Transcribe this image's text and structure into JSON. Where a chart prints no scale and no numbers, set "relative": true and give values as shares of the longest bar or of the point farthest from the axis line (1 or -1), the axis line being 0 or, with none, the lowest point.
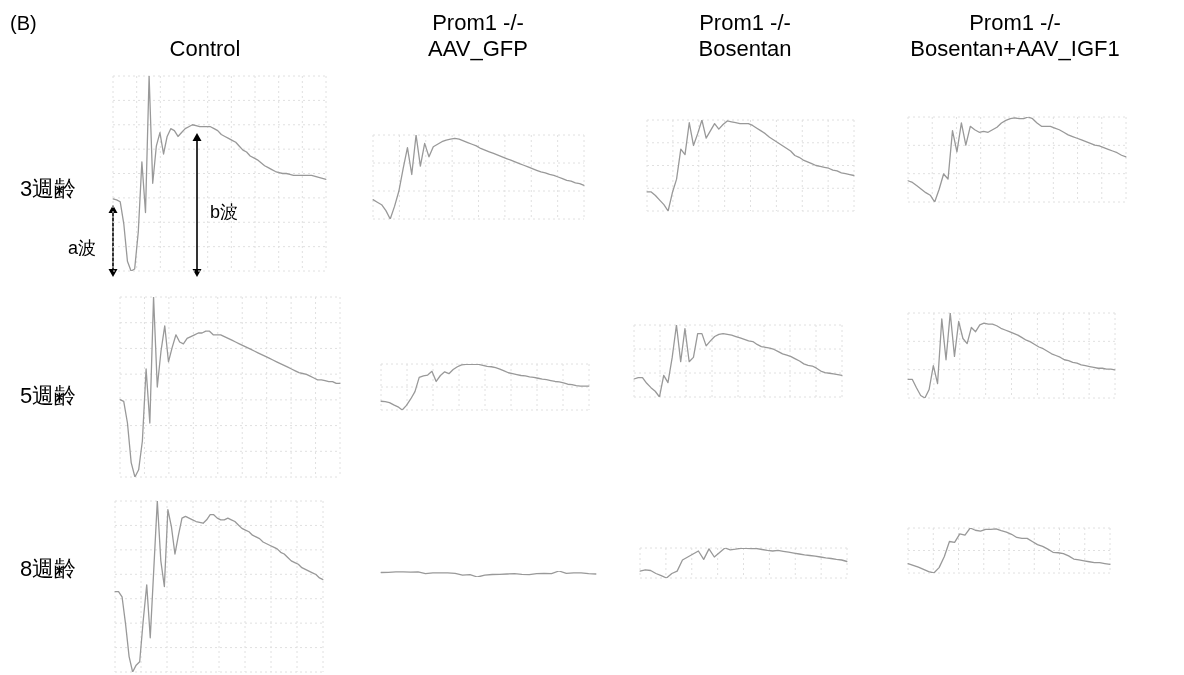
{
  "chart_data": [
    {
      "type": "line",
      "title": "Control",
      "ylabel": "3週齢",
      "annotations": [
        "(B)",
        "a波",
        "b波"
      ],
      "relative": true,
      "grid": true,
      "tick_labels": false,
      "marker": "none",
      "color": "#999999",
      "categories": [
        null,
        null,
        null,
        null,
        null,
        null,
        null,
        null,
        null,
        null,
        null,
        null,
        null,
        null,
        null,
        null,
        null,
        null,
        null,
        null,
        null,
        null,
        null,
        null,
        null,
        null,
        null,
        null,
        null,
        null,
        null,
        null,
        null,
        null,
        null,
        null,
        null,
        null,
        null,
        null,
        null,
        null,
        null,
        null,
        null,
        null,
        null,
        null,
        null,
        null,
        null,
        null,
        null,
        null,
        null,
        null,
        null,
        null,
        null,
        null
      ],
      "values": [
        0.37,
        0.365,
        0.355,
        0.24,
        0.05,
        0,
        0.01,
        0.2,
        0.56,
        0.3,
        1.0,
        0.45,
        0.64,
        0.71,
        0.6,
        0.69,
        0.73,
        0.72,
        0.69,
        0.71,
        0.73,
        0.74,
        0.75,
        0.745,
        0.74,
        0.74,
        0.74,
        0.74,
        0.73,
        0.72,
        0.7,
        0.69,
        0.68,
        0.67,
        0.66,
        0.64,
        0.62,
        0.61,
        0.59,
        0.58,
        0.57,
        0.555,
        0.54,
        0.53,
        0.52,
        0.51,
        0.505,
        0.5,
        0.5,
        0.495,
        0.49,
        0.49,
        0.49,
        0.49,
        0.49,
        0.49,
        0.485,
        0.48,
        0.475,
        0.47
      ]
    },
    {
      "type": "line",
      "title": "Prom1 -/- AAV_GFP",
      "relative": true,
      "grid": true,
      "tick_labels": false,
      "marker": "none",
      "color": "#999999",
      "categories": [
        null,
        null,
        null,
        null,
        null,
        null,
        null,
        null,
        null,
        null,
        null,
        null,
        null,
        null,
        null,
        null,
        null,
        null,
        null,
        null,
        null,
        null,
        null,
        null,
        null,
        null,
        null,
        null,
        null,
        null,
        null,
        null,
        null,
        null,
        null,
        null,
        null,
        null,
        null,
        null,
        null,
        null,
        null,
        null,
        null,
        null,
        null,
        null,
        null,
        null
      ],
      "values": [
        0.23,
        0.2,
        0.17,
        0.1,
        0,
        0.15,
        0.33,
        0.6,
        0.85,
        0.53,
        1.0,
        0.63,
        0.9,
        0.74,
        0.86,
        0.89,
        0.92,
        0.94,
        0.95,
        0.96,
        0.95,
        0.93,
        0.91,
        0.89,
        0.87,
        0.84,
        0.82,
        0.8,
        0.78,
        0.76,
        0.74,
        0.72,
        0.7,
        0.68,
        0.66,
        0.64,
        0.62,
        0.6,
        0.58,
        0.56,
        0.55,
        0.53,
        0.52,
        0.5,
        0.48,
        0.46,
        0.45,
        0.43,
        0.42,
        0.4
      ]
    },
    {
      "type": "line",
      "title": "Prom1 -/- Bosentan",
      "relative": true,
      "grid": true,
      "tick_labels": false,
      "marker": "none",
      "color": "#999999",
      "categories": [
        null,
        null,
        null,
        null,
        null,
        null,
        null,
        null,
        null,
        null,
        null,
        null,
        null,
        null,
        null,
        null,
        null,
        null,
        null,
        null,
        null,
        null,
        null,
        null,
        null,
        null,
        null,
        null,
        null,
        null,
        null,
        null,
        null,
        null,
        null,
        null,
        null,
        null,
        null,
        null,
        null,
        null,
        null,
        null,
        null,
        null,
        null,
        null,
        null,
        null
      ],
      "values": [
        0.21,
        0.21,
        0.17,
        0.12,
        0.07,
        0,
        0.2,
        0.35,
        0.68,
        0.62,
        0.97,
        0.72,
        0.85,
        1.0,
        0.8,
        0.88,
        0.96,
        0.9,
        0.95,
        0.99,
        0.98,
        0.97,
        0.96,
        0.96,
        0.96,
        0.94,
        0.91,
        0.88,
        0.85,
        0.81,
        0.78,
        0.75,
        0.72,
        0.69,
        0.66,
        0.61,
        0.59,
        0.56,
        0.54,
        0.52,
        0.5,
        0.49,
        0.48,
        0.47,
        0.45,
        0.44,
        0.42,
        0.41,
        0.4,
        0.39
      ]
    },
    {
      "type": "line",
      "title": "Prom1 -/- Bosentan+AAV_IGF1",
      "relative": true,
      "grid": true,
      "tick_labels": false,
      "marker": "none",
      "color": "#999999",
      "categories": [
        null,
        null,
        null,
        null,
        null,
        null,
        null,
        null,
        null,
        null,
        null,
        null,
        null,
        null,
        null,
        null,
        null,
        null,
        null,
        null,
        null,
        null,
        null,
        null,
        null,
        null,
        null,
        null,
        null,
        null,
        null,
        null,
        null,
        null,
        null,
        null,
        null,
        null,
        null,
        null,
        null,
        null,
        null,
        null,
        null,
        null,
        null,
        null,
        null,
        null
      ],
      "values": [
        0.25,
        0.23,
        0.19,
        0.15,
        0.11,
        0.08,
        0,
        0.15,
        0.33,
        0.27,
        0.84,
        0.59,
        0.93,
        0.67,
        0.89,
        0.85,
        0.82,
        0.83,
        0.82,
        0.85,
        0.88,
        0.93,
        0.96,
        0.98,
        0.99,
        0.98,
        0.98,
        1.0,
        0.98,
        0.93,
        0.89,
        0.89,
        0.89,
        0.87,
        0.85,
        0.82,
        0.79,
        0.77,
        0.75,
        0.73,
        0.71,
        0.69,
        0.67,
        0.66,
        0.64,
        0.62,
        0.6,
        0.58,
        0.55,
        0.53
      ]
    },
    {
      "type": "line",
      "ylabel": "5週齢",
      "relative": true,
      "grid": true,
      "tick_labels": false,
      "marker": "none",
      "color": "#999999",
      "categories": [
        null,
        null,
        null,
        null,
        null,
        null,
        null,
        null,
        null,
        null,
        null,
        null,
        null,
        null,
        null,
        null,
        null,
        null,
        null,
        null,
        null,
        null,
        null,
        null,
        null,
        null,
        null,
        null,
        null,
        null,
        null,
        null,
        null,
        null,
        null,
        null,
        null,
        null,
        null,
        null,
        null,
        null,
        null,
        null,
        null,
        null,
        null,
        null,
        null,
        null,
        null,
        null,
        null,
        null,
        null,
        null,
        null,
        null,
        null,
        null
      ],
      "values": [
        0.43,
        0.42,
        0.3,
        0.08,
        0,
        0.04,
        0.2,
        0.6,
        0.3,
        1.0,
        0.5,
        0.7,
        0.84,
        0.64,
        0.72,
        0.79,
        0.75,
        0.74,
        0.77,
        0.78,
        0.79,
        0.8,
        0.8,
        0.81,
        0.81,
        0.79,
        0.79,
        0.79,
        0.78,
        0.77,
        0.76,
        0.75,
        0.74,
        0.73,
        0.72,
        0.71,
        0.7,
        0.69,
        0.68,
        0.67,
        0.66,
        0.65,
        0.64,
        0.63,
        0.62,
        0.61,
        0.6,
        0.59,
        0.58,
        0.575,
        0.57,
        0.56,
        0.55,
        0.54,
        0.54,
        0.535,
        0.53,
        0.53,
        0.52,
        0.52
      ]
    },
    {
      "type": "line",
      "relative": true,
      "grid": true,
      "tick_labels": false,
      "marker": "none",
      "color": "#999999",
      "categories": [
        null,
        null,
        null,
        null,
        null,
        null,
        null,
        null,
        null,
        null,
        null,
        null,
        null,
        null,
        null,
        null,
        null,
        null,
        null,
        null,
        null,
        null,
        null,
        null,
        null,
        null,
        null,
        null,
        null,
        null,
        null,
        null,
        null,
        null,
        null,
        null,
        null,
        null,
        null,
        null,
        null,
        null,
        null,
        null,
        null,
        null,
        null,
        null,
        null,
        null
      ],
      "values": [
        0.19,
        0.18,
        0.16,
        0.11,
        0.07,
        0,
        0.1,
        0.24,
        0.4,
        0.71,
        0.74,
        0.76,
        0.84,
        0.62,
        0.75,
        0.83,
        0.79,
        0.88,
        0.94,
        0.98,
        0.99,
        0.99,
        1.0,
        0.99,
        0.97,
        0.95,
        0.94,
        0.92,
        0.89,
        0.85,
        0.81,
        0.79,
        0.77,
        0.75,
        0.74,
        0.72,
        0.71,
        0.69,
        0.67,
        0.66,
        0.64,
        0.62,
        0.61,
        0.59,
        0.56,
        0.55,
        0.53,
        0.52,
        0.52,
        0.52
      ]
    },
    {
      "type": "line",
      "relative": true,
      "grid": true,
      "tick_labels": false,
      "marker": "none",
      "color": "#999999",
      "categories": [
        null,
        null,
        null,
        null,
        null,
        null,
        null,
        null,
        null,
        null,
        null,
        null,
        null,
        null,
        null,
        null,
        null,
        null,
        null,
        null,
        null,
        null,
        null,
        null,
        null,
        null,
        null,
        null,
        null,
        null,
        null,
        null,
        null,
        null,
        null,
        null,
        null,
        null,
        null,
        null,
        null,
        null,
        null,
        null,
        null,
        null,
        null,
        null,
        null,
        null
      ],
      "values": [
        0.25,
        0.27,
        0.27,
        0.19,
        0.13,
        0.08,
        0,
        0.3,
        0.2,
        0.55,
        1.0,
        0.49,
        0.95,
        0.49,
        0.55,
        0.88,
        0.88,
        0.71,
        0.78,
        0.84,
        0.87,
        0.88,
        0.87,
        0.86,
        0.84,
        0.82,
        0.8,
        0.78,
        0.77,
        0.73,
        0.7,
        0.69,
        0.68,
        0.66,
        0.63,
        0.6,
        0.58,
        0.56,
        0.53,
        0.5,
        0.46,
        0.44,
        0.43,
        0.4,
        0.36,
        0.34,
        0.33,
        0.32,
        0.31,
        0.3
      ]
    },
    {
      "type": "line",
      "relative": true,
      "grid": true,
      "tick_labels": false,
      "marker": "none",
      "color": "#999999",
      "categories": [
        null,
        null,
        null,
        null,
        null,
        null,
        null,
        null,
        null,
        null,
        null,
        null,
        null,
        null,
        null,
        null,
        null,
        null,
        null,
        null,
        null,
        null,
        null,
        null,
        null,
        null,
        null,
        null,
        null,
        null,
        null,
        null,
        null,
        null,
        null,
        null,
        null,
        null,
        null,
        null,
        null,
        null,
        null,
        null,
        null,
        null,
        null,
        null,
        null,
        null
      ],
      "values": [
        0.22,
        0.22,
        0.12,
        0.03,
        0,
        0.1,
        0.38,
        0.17,
        0.93,
        0.45,
        1.0,
        0.49,
        0.9,
        0.7,
        0.64,
        0.83,
        0.78,
        0.86,
        0.88,
        0.87,
        0.87,
        0.85,
        0.82,
        0.8,
        0.78,
        0.76,
        0.74,
        0.71,
        0.68,
        0.66,
        0.63,
        0.6,
        0.58,
        0.55,
        0.52,
        0.5,
        0.48,
        0.45,
        0.44,
        0.42,
        0.41,
        0.39,
        0.38,
        0.37,
        0.36,
        0.35,
        0.35,
        0.34,
        0.34,
        0.33
      ]
    },
    {
      "type": "line",
      "ylabel": "8週齢",
      "relative": true,
      "grid": true,
      "tick_labels": false,
      "marker": "none",
      "color": "#999999",
      "categories": [
        null,
        null,
        null,
        null,
        null,
        null,
        null,
        null,
        null,
        null,
        null,
        null,
        null,
        null,
        null,
        null,
        null,
        null,
        null,
        null,
        null,
        null,
        null,
        null,
        null,
        null,
        null,
        null,
        null,
        null,
        null,
        null,
        null,
        null,
        null,
        null,
        null,
        null,
        null,
        null,
        null,
        null,
        null,
        null,
        null,
        null,
        null,
        null,
        null,
        null,
        null,
        null,
        null,
        null,
        null,
        null,
        null,
        null,
        null,
        null
      ],
      "values": [
        0.47,
        0.47,
        0.44,
        0.28,
        0.09,
        0,
        0.04,
        0.06,
        0.3,
        0.51,
        0.2,
        0.6,
        1.0,
        0.65,
        0.5,
        0.95,
        0.85,
        0.69,
        0.8,
        0.9,
        0.91,
        0.9,
        0.89,
        0.88,
        0.875,
        0.87,
        0.89,
        0.92,
        0.92,
        0.9,
        0.89,
        0.89,
        0.9,
        0.89,
        0.88,
        0.86,
        0.84,
        0.83,
        0.82,
        0.8,
        0.79,
        0.78,
        0.76,
        0.75,
        0.74,
        0.73,
        0.72,
        0.7,
        0.69,
        0.67,
        0.65,
        0.64,
        0.63,
        0.61,
        0.6,
        0.59,
        0.58,
        0.57,
        0.55,
        0.54
      ]
    },
    {
      "type": "line",
      "relative": true,
      "tick_labels": false,
      "marker": "none",
      "color": "#999999",
      "categories": [
        null,
        null,
        null,
        null,
        null,
        null,
        null,
        null,
        null,
        null,
        null,
        null,
        null,
        null,
        null,
        null,
        null,
        null,
        null,
        null,
        null,
        null,
        null,
        null,
        null,
        null,
        null,
        null,
        null,
        null
      ],
      "values": [
        0.75,
        0.78,
        0.85,
        0.85,
        0.82,
        0.85,
        0.55,
        0.68,
        0.68,
        0.7,
        0.62,
        0.32,
        0.4,
        0,
        0.3,
        0.42,
        0.45,
        0.5,
        0.55,
        0.45,
        0.38,
        0.55,
        0.62,
        0.55,
        1.0,
        0.6,
        0.68,
        0.7,
        0.55,
        0.5
      ]
    },
    {
      "type": "line",
      "relative": true,
      "grid": true,
      "tick_labels": false,
      "marker": "none",
      "color": "#999999",
      "categories": [
        null,
        null,
        null,
        null,
        null,
        null,
        null,
        null,
        null,
        null,
        null,
        null,
        null,
        null,
        null,
        null,
        null,
        null,
        null,
        null,
        null,
        null,
        null,
        null,
        null,
        null,
        null,
        null,
        null,
        null,
        null,
        null,
        null,
        null,
        null,
        null,
        null,
        null,
        null,
        null
      ],
      "values": [
        0.23,
        0.27,
        0.25,
        0.15,
        0.08,
        0,
        0.15,
        0.23,
        0.6,
        0.7,
        0.8,
        0.9,
        0.62,
        0.97,
        0.7,
        0.85,
        1.0,
        0.94,
        0.96,
        0.99,
        0.99,
        0.98,
        0.98,
        0.95,
        0.92,
        0.9,
        0.92,
        0.89,
        0.86,
        0.83,
        0.8,
        0.77,
        0.75,
        0.73,
        0.7,
        0.67,
        0.65,
        0.62,
        0.6,
        0.55
      ]
    },
    {
      "type": "line",
      "relative": true,
      "grid": true,
      "tick_labels": false,
      "marker": "none",
      "color": "#999999",
      "categories": [
        null,
        null,
        null,
        null,
        null,
        null,
        null,
        null,
        null,
        null,
        null,
        null,
        null,
        null,
        null,
        null,
        null,
        null,
        null,
        null,
        null,
        null,
        null,
        null,
        null,
        null,
        null,
        null,
        null,
        null,
        null,
        null,
        null,
        null,
        null,
        null,
        null,
        null,
        null,
        null
      ],
      "values": [
        0.21,
        0.17,
        0.13,
        0.08,
        0.03,
        0,
        0.12,
        0.36,
        0.7,
        0.68,
        0.87,
        0.84,
        1.0,
        0.95,
        0.93,
        0.97,
        0.97,
        0.98,
        0.94,
        0.91,
        0.86,
        0.79,
        0.77,
        0.77,
        0.7,
        0.63,
        0.59,
        0.53,
        0.46,
        0.45,
        0.43,
        0.38,
        0.31,
        0.29,
        0.27,
        0.25,
        0.23,
        0.23,
        0.21,
        0.19
      ]
    }
  ]
}
